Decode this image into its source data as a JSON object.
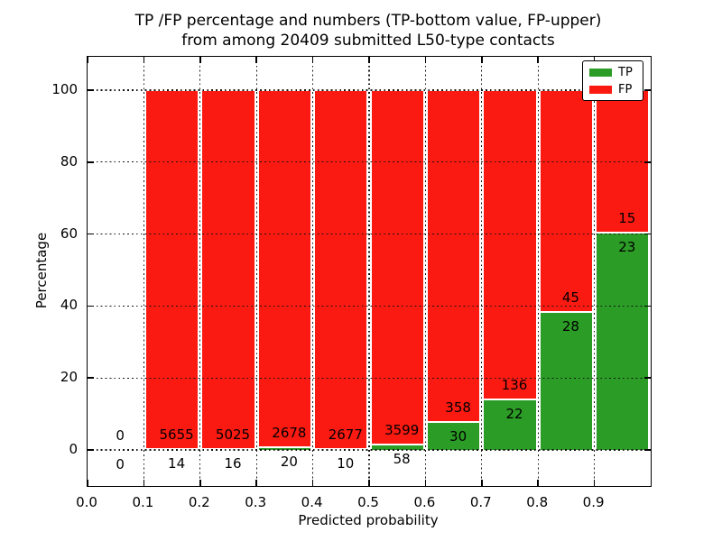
{
  "chart_data": {
    "type": "bar",
    "stacked": true,
    "units": "percent of bin total",
    "title": "TP /FP percentage and numbers (TP-bottom value, FP-upper) from among 20409 submitted L50-type contacts",
    "title_line1": "TP /FP percentage and numbers (TP-bottom value, FP-upper)",
    "title_line2": "from among 20409 submitted L50-type contacts",
    "xlabel": "Predicted probability",
    "ylabel": "Percentage",
    "x_tick_labels": [
      "0.0",
      "0.1",
      "0.2",
      "0.3",
      "0.4",
      "0.5",
      "0.6",
      "0.7",
      "0.8",
      "0.9"
    ],
    "y_ticks": [
      0,
      20,
      40,
      60,
      80,
      100
    ],
    "xlim": [
      0.0,
      1.0
    ],
    "ylim": [
      -10,
      109.3
    ],
    "grid": "dotted, drawn over bars",
    "total_contacts": 20409,
    "legend": {
      "position": "upper right",
      "entries": [
        {
          "label": "TP",
          "color": "#2b9c26"
        },
        {
          "label": "FP",
          "color": "#fb1a12"
        }
      ]
    },
    "bins": [
      {
        "range": [
          0.0,
          0.1
        ],
        "tp": 0,
        "fp": 0,
        "tp_pct": 0.0
      },
      {
        "range": [
          0.1,
          0.2
        ],
        "tp": 14,
        "fp": 5655,
        "tp_pct": 0.25
      },
      {
        "range": [
          0.2,
          0.3
        ],
        "tp": 16,
        "fp": 5025,
        "tp_pct": 0.32
      },
      {
        "range": [
          0.3,
          0.4
        ],
        "tp": 20,
        "fp": 2678,
        "tp_pct": 0.74
      },
      {
        "range": [
          0.4,
          0.5
        ],
        "tp": 10,
        "fp": 2677,
        "tp_pct": 0.37
      },
      {
        "range": [
          0.5,
          0.6
        ],
        "tp": 58,
        "fp": 3599,
        "tp_pct": 1.59
      },
      {
        "range": [
          0.6,
          0.7
        ],
        "tp": 30,
        "fp": 358,
        "tp_pct": 7.73
      },
      {
        "range": [
          0.7,
          0.8
        ],
        "tp": 22,
        "fp": 136,
        "tp_pct": 13.92
      },
      {
        "range": [
          0.8,
          0.9
        ],
        "tp": 28,
        "fp": 45,
        "tp_pct": 38.36
      },
      {
        "range": [
          0.9,
          1.0
        ],
        "tp": 23,
        "fp": 15,
        "tp_pct": 60.53
      }
    ]
  }
}
